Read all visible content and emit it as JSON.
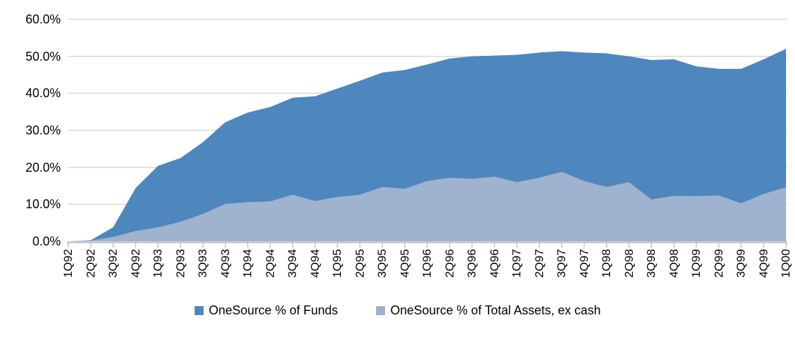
{
  "chart_data": {
    "type": "area",
    "title": "",
    "xlabel": "",
    "ylabel": "",
    "categories": [
      "1Q92",
      "2Q92",
      "3Q92",
      "4Q92",
      "1Q93",
      "2Q93",
      "3Q93",
      "4Q93",
      "1Q94",
      "2Q94",
      "3Q94",
      "4Q94",
      "1Q95",
      "2Q95",
      "3Q95",
      "4Q95",
      "1Q96",
      "2Q96",
      "3Q96",
      "4Q96",
      "1Q97",
      "2Q97",
      "3Q97",
      "4Q97",
      "1Q98",
      "2Q98",
      "3Q98",
      "4Q98",
      "1Q99",
      "2Q99",
      "3Q99",
      "4Q99",
      "1Q00"
    ],
    "series": [
      {
        "name": "OneSource % of Funds",
        "color": "#4E86BE",
        "values": [
          0.0,
          0.3,
          3.8,
          14.4,
          20.4,
          22.5,
          26.8,
          32.2,
          34.8,
          36.3,
          38.8,
          39.2,
          41.3,
          43.4,
          45.6,
          46.3,
          47.8,
          49.4,
          50.0,
          50.2,
          50.4,
          51.0,
          51.4,
          51.0,
          50.8,
          50.0,
          49.0,
          49.2,
          47.3,
          46.6,
          46.6,
          49.2,
          52.0
        ]
      },
      {
        "name": "OneSource % of Total Assets, ex cash",
        "color": "#9FB2CE",
        "values": [
          0.0,
          0.2,
          1.2,
          2.8,
          3.8,
          5.3,
          7.4,
          10.1,
          10.6,
          10.8,
          12.6,
          10.9,
          12.0,
          12.6,
          14.7,
          14.2,
          16.3,
          17.2,
          16.9,
          17.5,
          16.0,
          17.2,
          18.8,
          16.3,
          14.7,
          16.0,
          11.3,
          12.3,
          12.2,
          12.4,
          10.3,
          12.8,
          14.6
        ]
      }
    ],
    "y_ticks": [
      "0.0%",
      "10.0%",
      "20.0%",
      "30.0%",
      "40.0%",
      "50.0%",
      "60.0%"
    ],
    "ylim": [
      0,
      60
    ],
    "grid": true,
    "legend_position": "bottom",
    "areas_overlap": true
  },
  "colors": {
    "background": "#FFFFFF",
    "grid": "#D9D9D9",
    "axis": "#BFBFBF",
    "text": "#000000"
  }
}
